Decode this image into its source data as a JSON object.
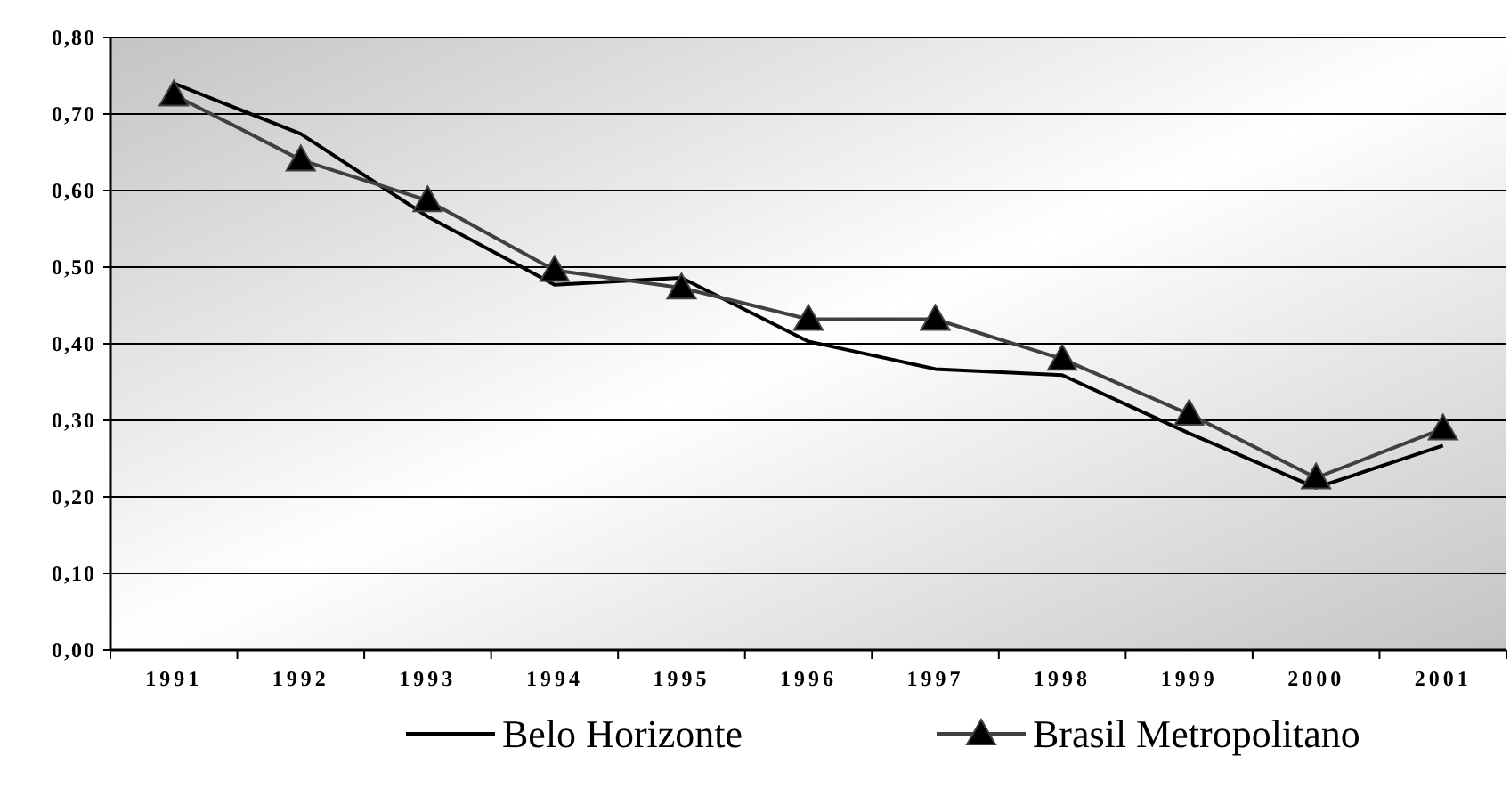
{
  "chart_data": {
    "type": "line",
    "categories": [
      "1991",
      "1992",
      "1993",
      "1994",
      "1995",
      "1996",
      "1997",
      "1998",
      "1999",
      "2000",
      "2001"
    ],
    "series": [
      {
        "name": "Belo Horizonte",
        "color": "#000000",
        "marker": "none",
        "values": [
          0.74,
          0.674,
          0.566,
          0.477,
          0.486,
          0.403,
          0.367,
          0.359,
          0.283,
          0.212,
          0.267
        ]
      },
      {
        "name": "Brasil Metropolitano",
        "color": "#404040",
        "marker": "triangle",
        "values": [
          0.725,
          0.64,
          0.587,
          0.496,
          0.473,
          0.432,
          0.432,
          0.38,
          0.308,
          0.225,
          0.289
        ]
      }
    ],
    "ylim": [
      0,
      0.8
    ],
    "yticks": [
      {
        "value": 0,
        "label": "0,00"
      },
      {
        "value": 0.1,
        "label": "0,10"
      },
      {
        "value": 0.2,
        "label": "0,20"
      },
      {
        "value": 0.3,
        "label": "0,30"
      },
      {
        "value": 0.4,
        "label": "0,40"
      },
      {
        "value": 0.5,
        "label": "0,50"
      },
      {
        "value": 0.6,
        "label": "0,60"
      },
      {
        "value": 0.7,
        "label": "0,70"
      },
      {
        "value": 0.8,
        "label": "0,80"
      }
    ],
    "grid": "y",
    "legend": "bottom",
    "line_style": "solid"
  }
}
